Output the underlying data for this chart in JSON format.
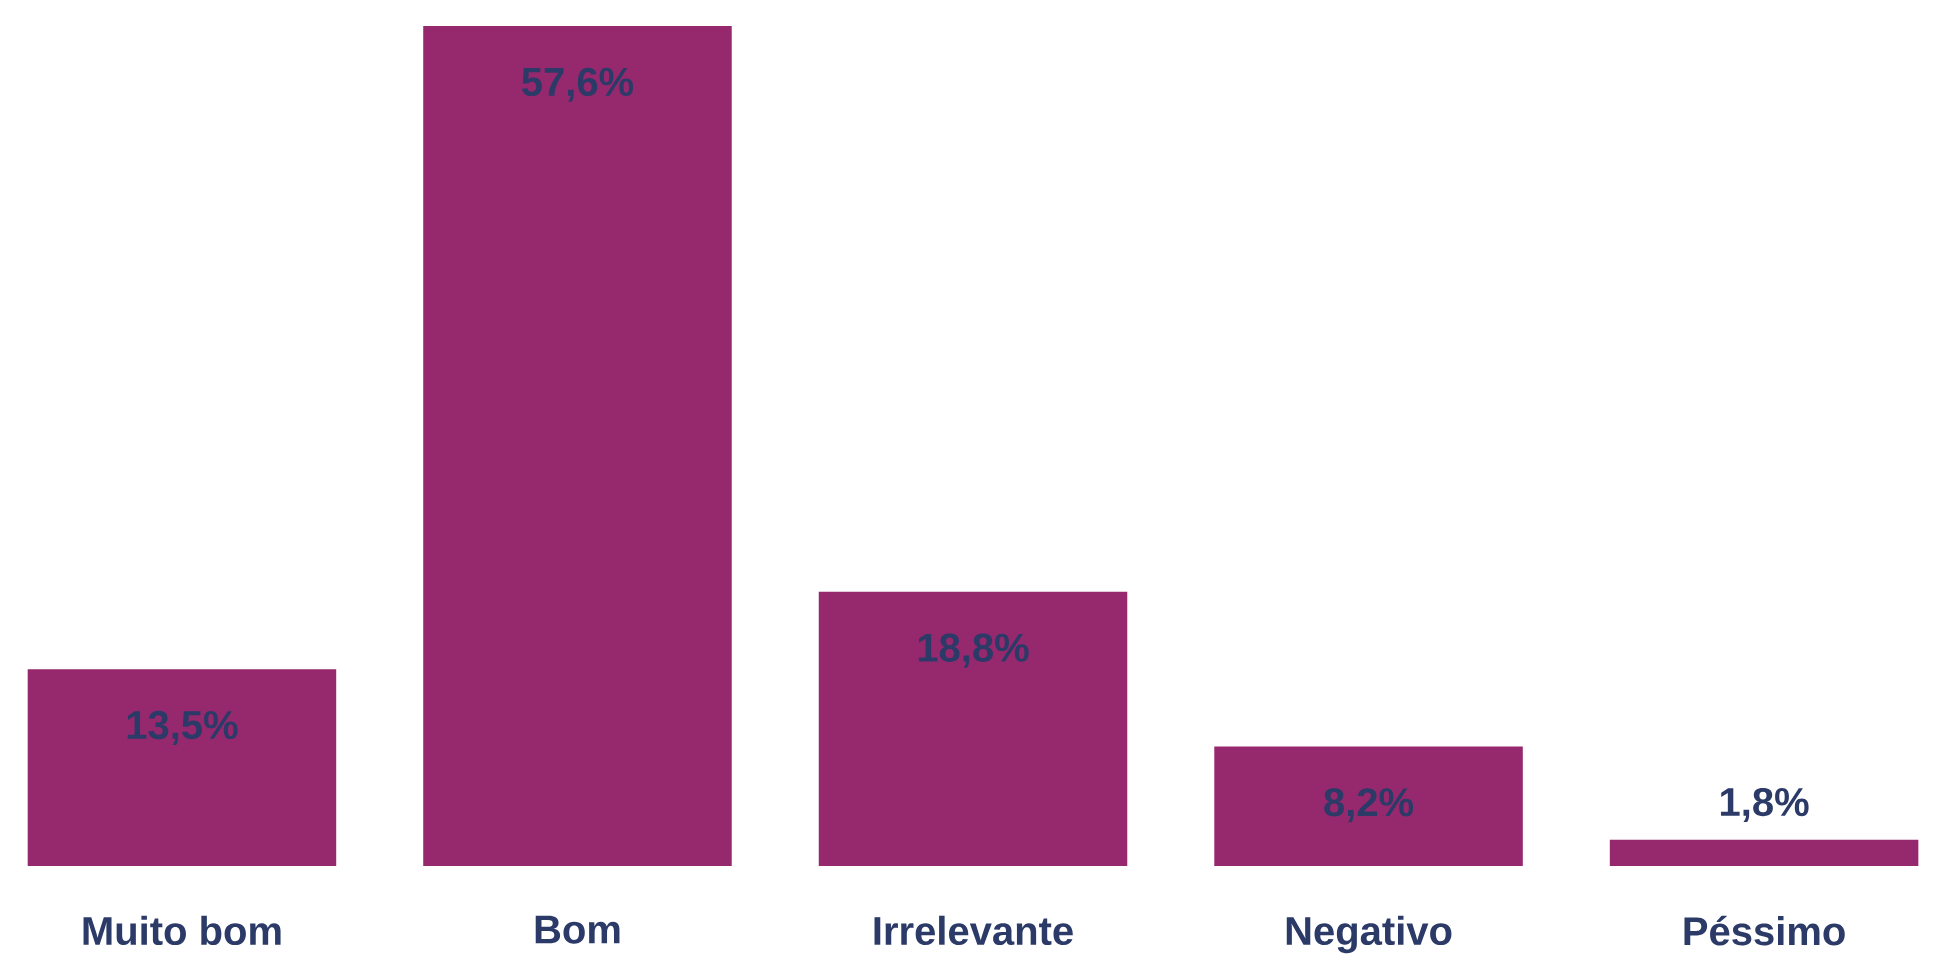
{
  "chart_data": {
    "type": "bar",
    "categories": [
      "Muito bom",
      "Bom",
      "Irrelevante",
      "Negativo",
      "Péssimo"
    ],
    "values": [
      13.5,
      57.6,
      18.8,
      8.2,
      1.8
    ],
    "value_labels": [
      "13,5%",
      "57,6%",
      "18,8%",
      "8,2%",
      "1,8%"
    ],
    "color": "#96296e"
  }
}
